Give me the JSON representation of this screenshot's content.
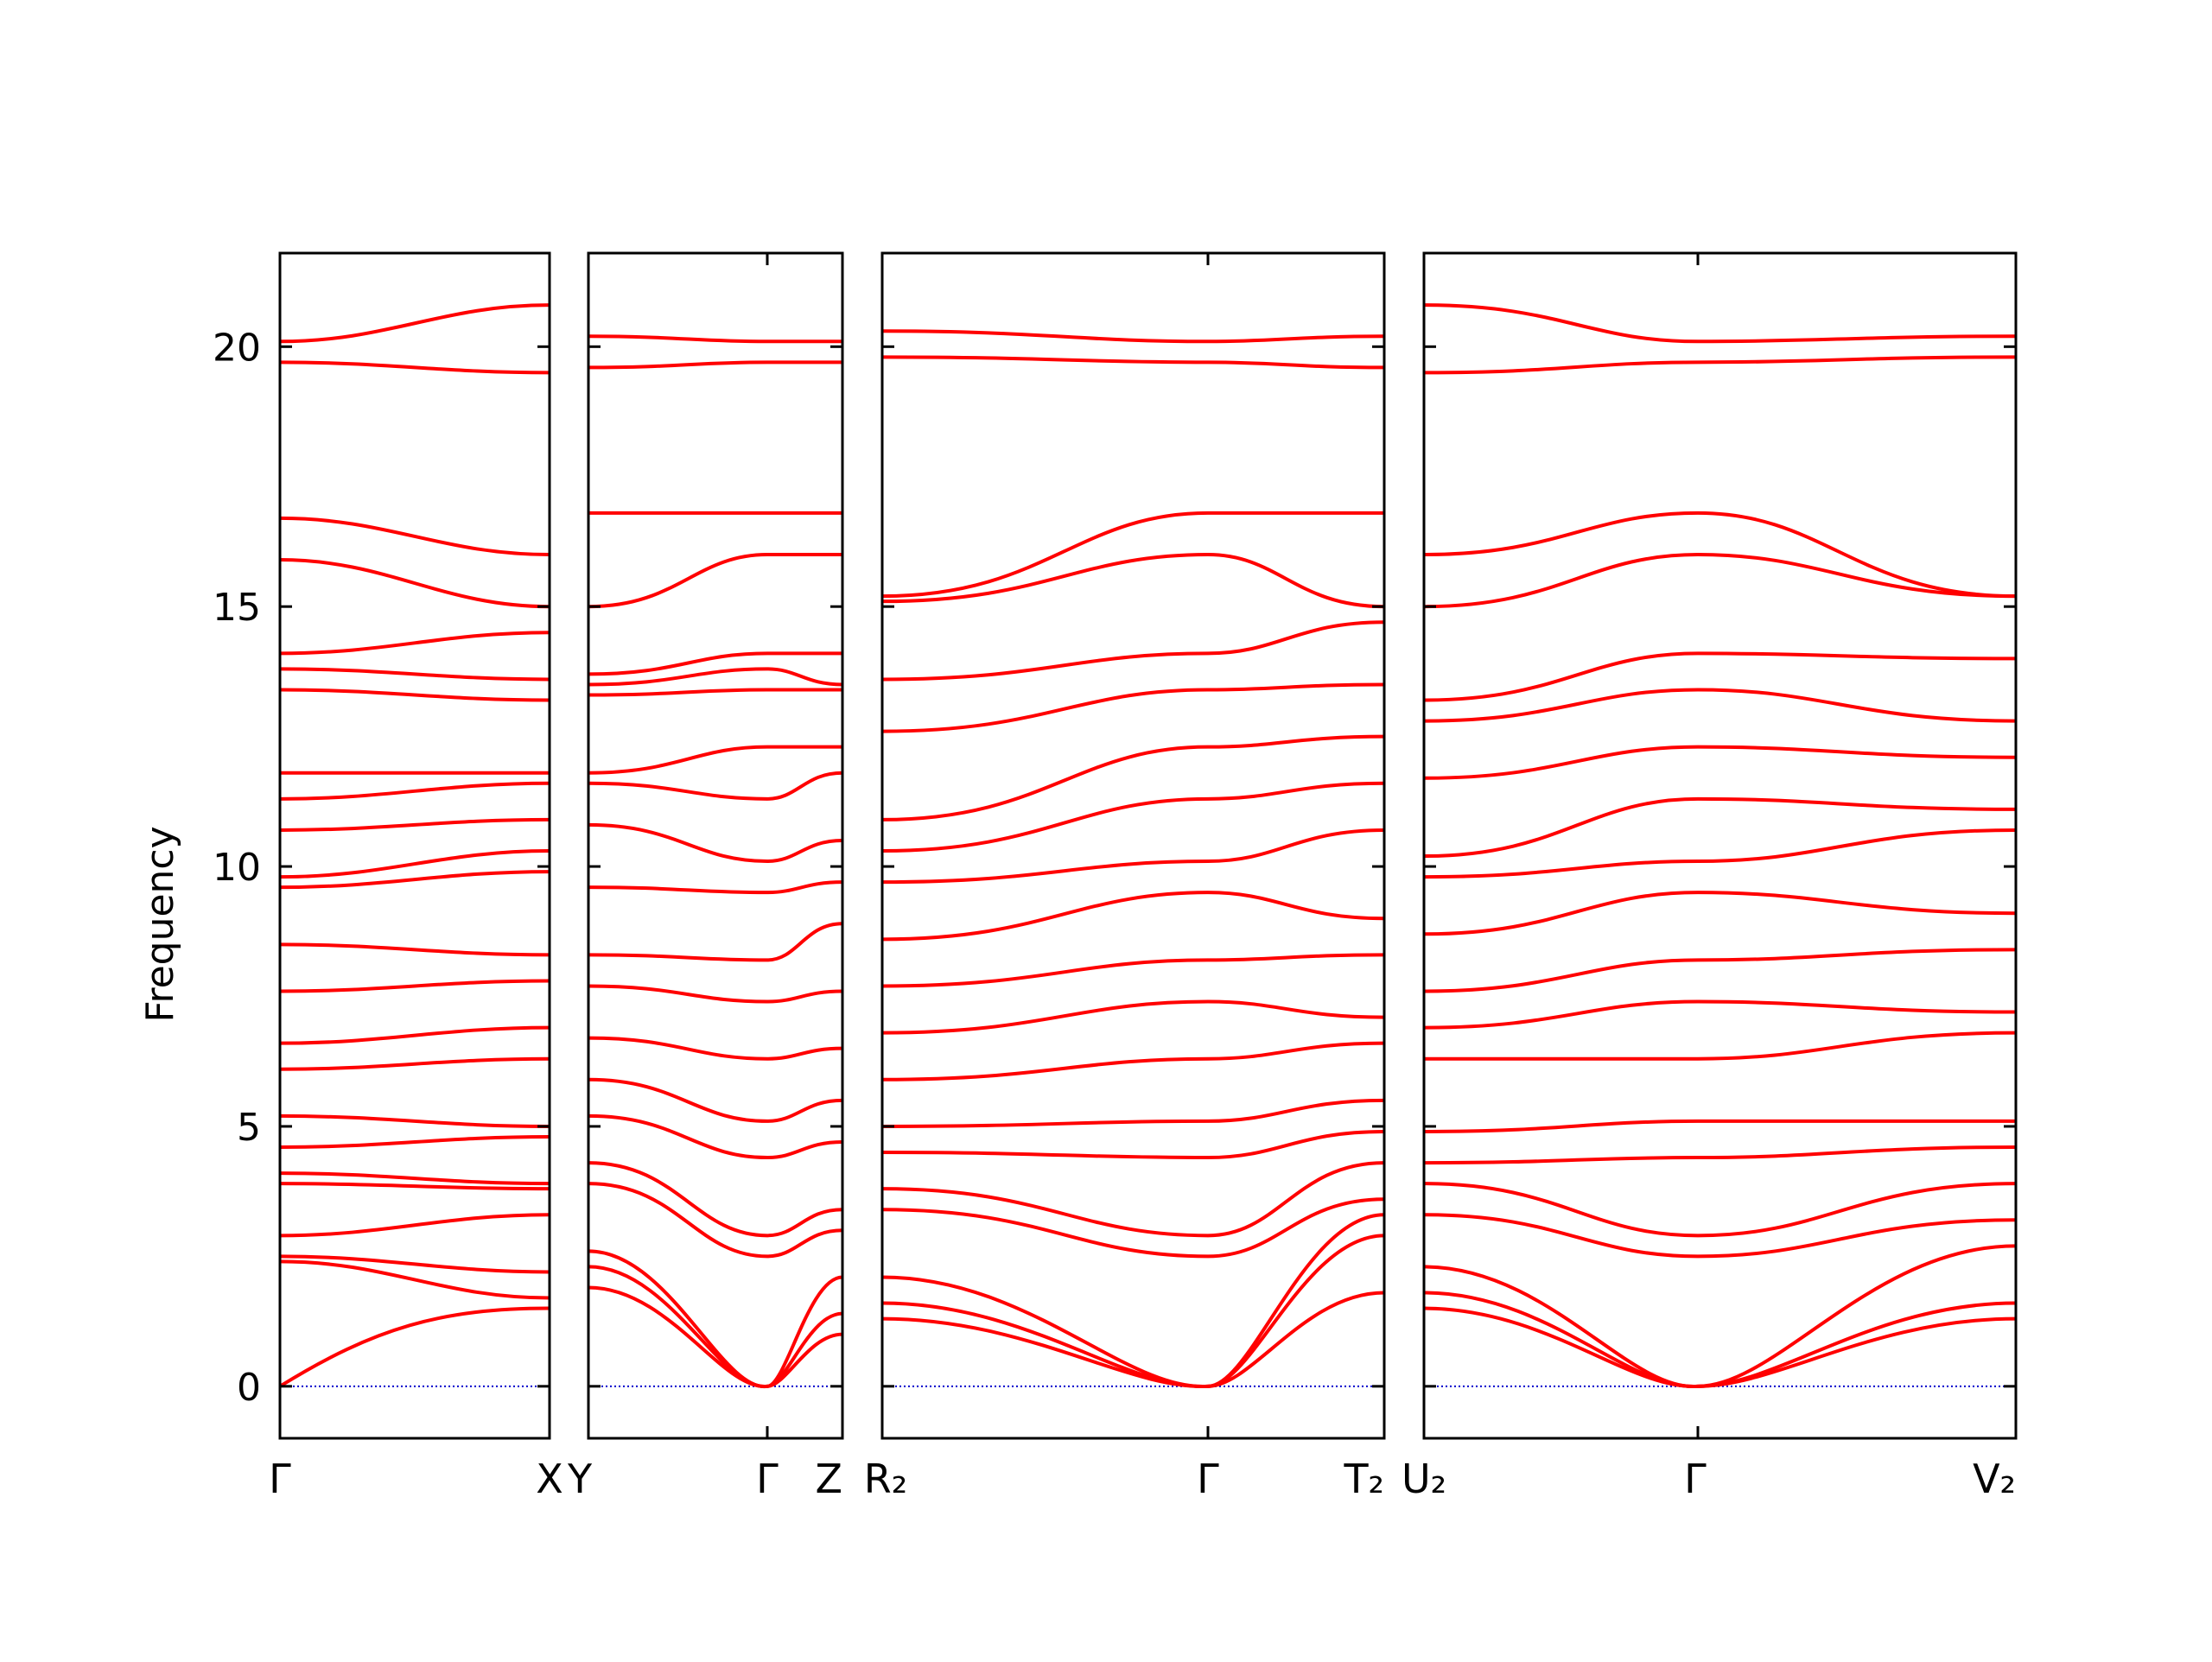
{
  "chart_data": {
    "type": "line",
    "title": "",
    "xlabel": "",
    "ylabel": "Frequency",
    "ylim": [
      -1.0,
      21.8
    ],
    "yticks": [
      0,
      5,
      10,
      15,
      20
    ],
    "ytick_labels": [
      "0",
      "5",
      "10",
      "15",
      "20"
    ],
    "grid": false,
    "legend": "none",
    "colors": {
      "bands": "#ff0000",
      "zero_line": "#0000cc",
      "axes": "#000000"
    },
    "panels": [
      {
        "labels": [
          "Γ",
          "X"
        ],
        "starts": [
          0.0,
          2.4,
          2.5,
          2.9,
          3.9,
          4.1,
          4.6,
          5.2,
          6.1,
          6.6,
          7.6,
          8.5,
          9.6,
          9.8,
          10.7,
          11.3,
          11.8,
          13.4,
          13.8,
          14.1,
          15.9,
          16.7,
          19.7,
          20.1
        ],
        "ends": [
          1.5,
          1.7,
          2.2,
          3.3,
          3.8,
          3.9,
          4.8,
          5.0,
          6.3,
          6.9,
          7.8,
          8.3,
          9.9,
          10.3,
          10.9,
          11.6,
          11.8,
          13.2,
          13.6,
          14.5,
          15.0,
          16.0,
          19.5,
          20.8
        ]
      },
      {
        "labels": [
          "Y",
          "Γ",
          "Z"
        ],
        "starts": [
          1.9,
          2.3,
          2.6,
          3.9,
          4.3,
          5.2,
          5.9,
          6.7,
          7.7,
          8.3,
          9.6,
          10.8,
          11.6,
          11.8,
          13.3,
          13.5,
          13.7,
          15.0,
          16.8,
          19.6,
          20.2
        ],
        "mids": [
          0.0,
          0.0,
          0.0,
          2.5,
          2.9,
          4.4,
          5.1,
          6.3,
          7.4,
          8.2,
          9.5,
          10.1,
          11.3,
          12.3,
          13.4,
          13.8,
          14.1,
          16.0,
          16.8,
          19.7,
          20.1
        ],
        "ends": [
          1.4,
          2.1,
          1.0,
          3.0,
          3.4,
          4.7,
          5.5,
          6.5,
          7.6,
          8.9,
          9.7,
          10.5,
          11.8,
          12.3,
          13.4,
          13.5,
          14.1,
          16.0,
          16.8,
          19.7,
          20.1
        ]
      },
      {
        "labels": [
          "R₂",
          "Γ",
          "T₂"
        ],
        "starts": [
          1.3,
          1.6,
          2.1,
          3.4,
          3.8,
          4.5,
          5.0,
          5.9,
          6.8,
          7.7,
          8.6,
          9.7,
          10.3,
          10.9,
          12.6,
          13.6,
          15.1,
          15.2,
          19.8,
          20.3
        ],
        "mids": [
          0.0,
          0.0,
          0.0,
          2.5,
          2.9,
          4.4,
          5.1,
          6.3,
          7.4,
          8.2,
          9.5,
          10.1,
          11.3,
          12.3,
          13.4,
          14.1,
          16.0,
          16.8,
          19.7,
          20.1
        ],
        "ends": [
          1.8,
          2.9,
          3.3,
          3.6,
          4.3,
          4.9,
          5.5,
          6.6,
          7.1,
          8.3,
          9.0,
          10.7,
          11.6,
          12.5,
          13.5,
          14.7,
          15.0,
          16.8,
          19.6,
          20.2
        ]
      },
      {
        "labels": [
          "U₂",
          "Γ",
          "V₂"
        ],
        "starts": [
          1.5,
          1.8,
          2.3,
          3.3,
          3.9,
          4.3,
          4.9,
          6.3,
          6.9,
          7.6,
          8.7,
          9.8,
          10.2,
          11.7,
          12.8,
          13.2,
          15.0,
          16.0,
          19.5,
          20.8
        ],
        "mids": [
          0.0,
          0.0,
          0.0,
          2.5,
          2.9,
          4.4,
          5.1,
          6.3,
          7.4,
          8.2,
          9.5,
          10.1,
          11.3,
          12.3,
          13.4,
          14.1,
          16.0,
          16.8,
          19.7,
          20.1
        ],
        "ends": [
          1.3,
          1.6,
          2.7,
          3.2,
          3.9,
          4.6,
          5.1,
          6.8,
          7.2,
          8.4,
          9.1,
          10.7,
          11.1,
          12.1,
          12.8,
          14.0,
          15.2,
          15.2,
          19.8,
          20.2
        ]
      }
    ]
  }
}
